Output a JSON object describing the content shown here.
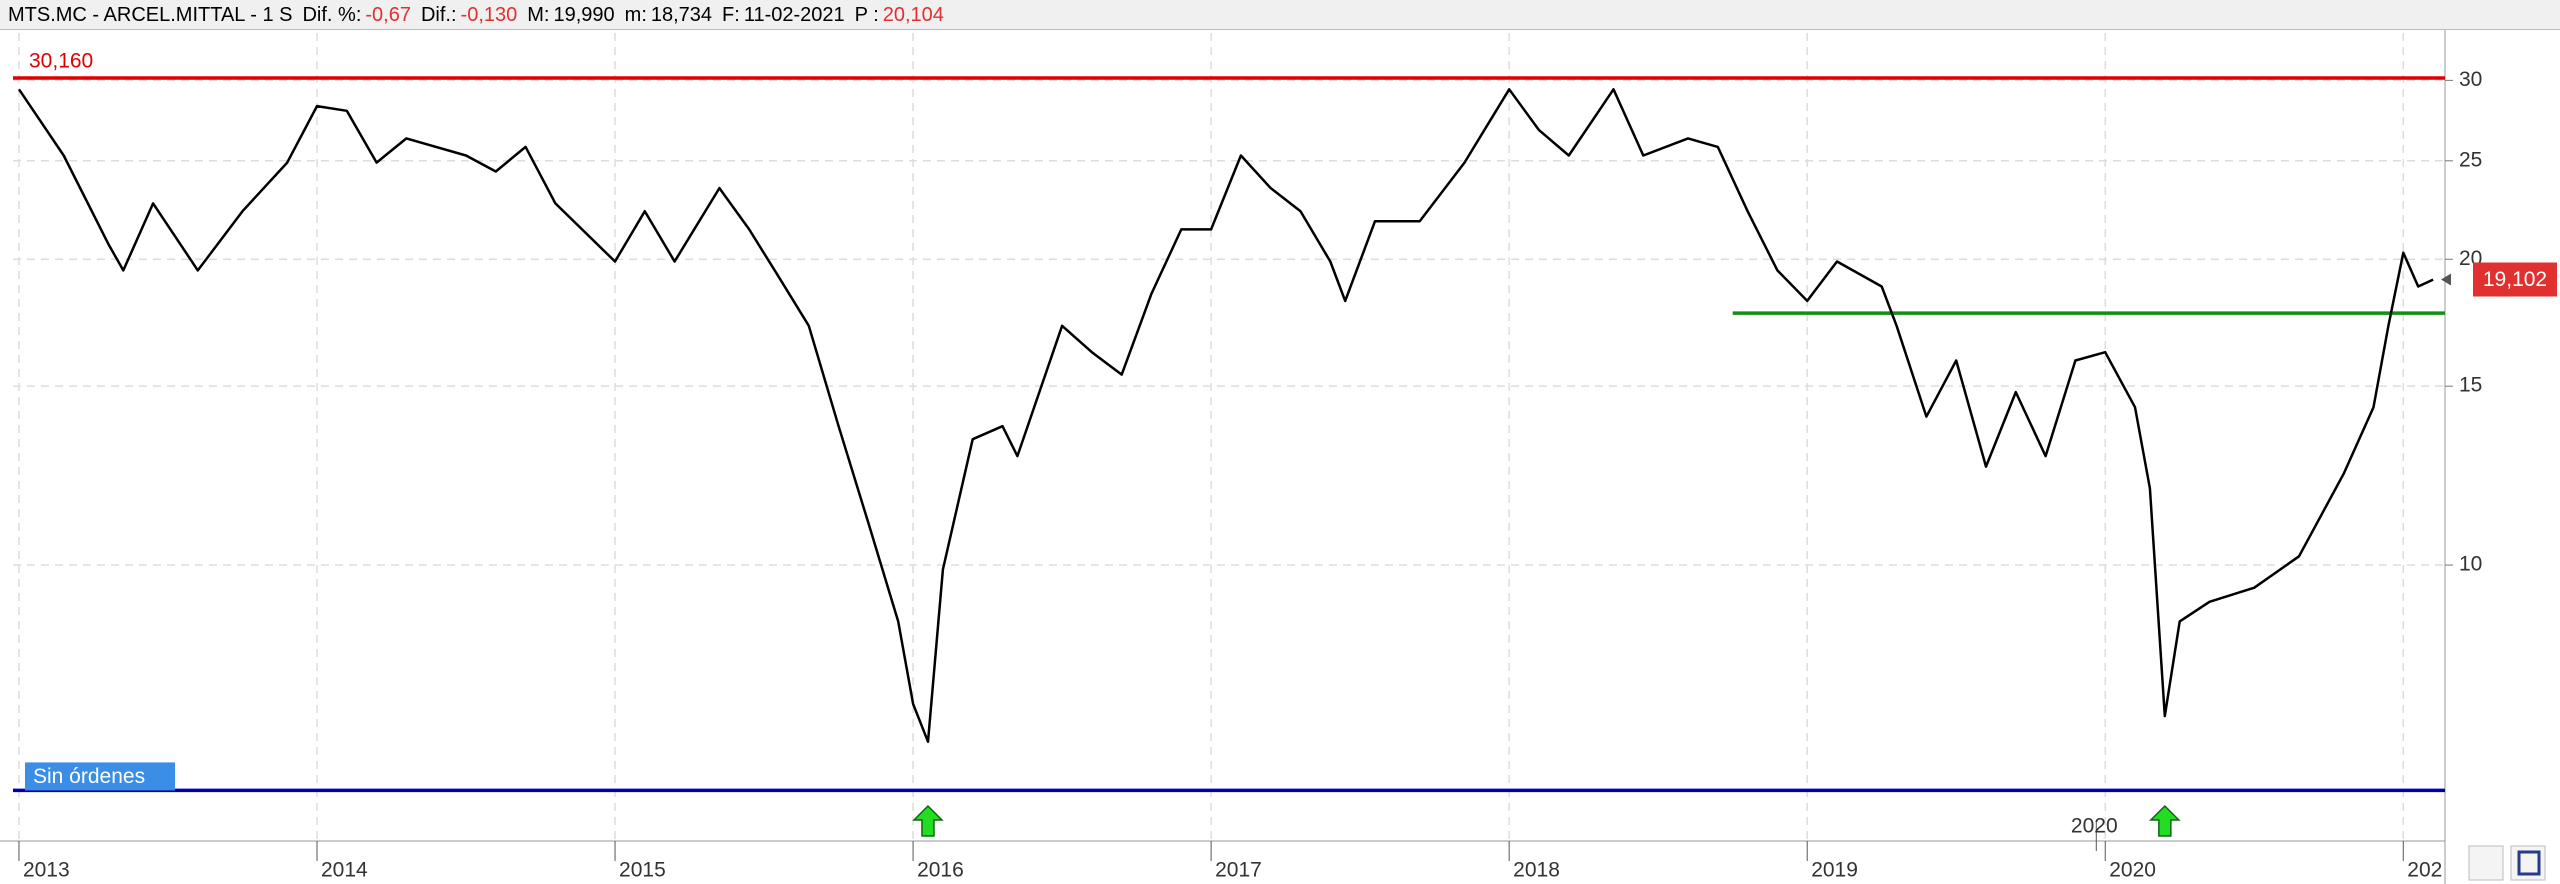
{
  "header": {
    "symbol": "MTS.MC - ARCEL.MITTAL - 1 S",
    "fields": [
      {
        "key": "Dif. %:",
        "value": "-0,67",
        "color": "neg"
      },
      {
        "key": "Dif.:",
        "value": "-0,130",
        "color": "neg"
      },
      {
        "key": "M:",
        "value": "19,990",
        "color": "blk"
      },
      {
        "key": "m:",
        "value": "18,734",
        "color": "blk"
      },
      {
        "key": "F:",
        "value": "11-02-2021",
        "color": "blk"
      },
      {
        "key": "P :",
        "value": "20,104",
        "color": "neg"
      }
    ]
  },
  "chart_data": {
    "type": "line",
    "color": "#000000",
    "log_scale": true,
    "grid": true,
    "x": [
      2013.0,
      2013.15,
      2013.3,
      2013.35,
      2013.45,
      2013.6,
      2013.75,
      2013.9,
      2014.0,
      2014.1,
      2014.2,
      2014.3,
      2014.5,
      2014.6,
      2014.7,
      2014.8,
      2015.0,
      2015.1,
      2015.2,
      2015.35,
      2015.45,
      2015.55,
      2015.65,
      2015.75,
      2015.85,
      2015.95,
      2016.0,
      2016.05,
      2016.1,
      2016.2,
      2016.3,
      2016.35,
      2016.5,
      2016.6,
      2016.7,
      2016.8,
      2016.9,
      2017.0,
      2017.1,
      2017.2,
      2017.3,
      2017.4,
      2017.45,
      2017.55,
      2017.7,
      2017.85,
      2018.0,
      2018.1,
      2018.2,
      2018.35,
      2018.45,
      2018.6,
      2018.7,
      2018.8,
      2018.9,
      2019.0,
      2019.1,
      2019.25,
      2019.3,
      2019.4,
      2019.5,
      2019.6,
      2019.7,
      2019.8,
      2019.9,
      2020.0,
      2020.1,
      2020.15,
      2020.2,
      2020.25,
      2020.35,
      2020.5,
      2020.65,
      2020.8,
      2020.9,
      2020.95,
      2021.0,
      2021.05,
      2021.1
    ],
    "values": [
      29.4,
      25.3,
      20.7,
      19.5,
      22.7,
      19.5,
      22.3,
      24.9,
      28.3,
      28.0,
      24.9,
      26.3,
      25.3,
      24.4,
      25.8,
      22.7,
      19.9,
      22.3,
      19.9,
      23.5,
      21.4,
      19.2,
      17.2,
      13.7,
      11.0,
      8.8,
      7.3,
      6.7,
      9.9,
      13.3,
      13.7,
      12.8,
      17.2,
      16.2,
      15.4,
      18.5,
      21.4,
      21.4,
      25.3,
      23.5,
      22.3,
      19.9,
      18.2,
      21.8,
      21.8,
      24.9,
      29.4,
      26.8,
      25.3,
      29.4,
      25.3,
      26.3,
      25.8,
      22.3,
      19.5,
      18.2,
      19.9,
      18.8,
      17.2,
      14.0,
      15.9,
      12.5,
      14.8,
      12.8,
      15.9,
      16.2,
      14.3,
      11.9,
      7.1,
      8.8,
      9.2,
      9.5,
      10.2,
      12.3,
      14.3,
      17.2,
      20.3,
      18.8,
      19.1
    ],
    "xlim": [
      2012.98,
      2021.14
    ],
    "xticks": [
      2013,
      2014,
      2015,
      2016,
      2017,
      2018,
      2019,
      2020,
      {
        "value": 2021,
        "label": "202"
      }
    ],
    "ylim": [
      5.35,
      33.4
    ],
    "yticks": [
      10,
      15,
      20,
      25,
      30
    ],
    "hlines": [
      {
        "value": 30.16,
        "label": "30,160",
        "color": "#e00000"
      },
      {
        "value": 17.7,
        "color": "#109010",
        "x_start": 2018.75
      },
      {
        "value": 6.0,
        "label": "Sin órdenes",
        "color": "#0000b0"
      }
    ],
    "last_price": {
      "value": 19.102,
      "label": "19,102",
      "color": "#e03030"
    },
    "signals": [
      2016.05,
      2020.2
    ],
    "annotations": [
      {
        "x": 2019.97,
        "text": "2020"
      }
    ]
  }
}
